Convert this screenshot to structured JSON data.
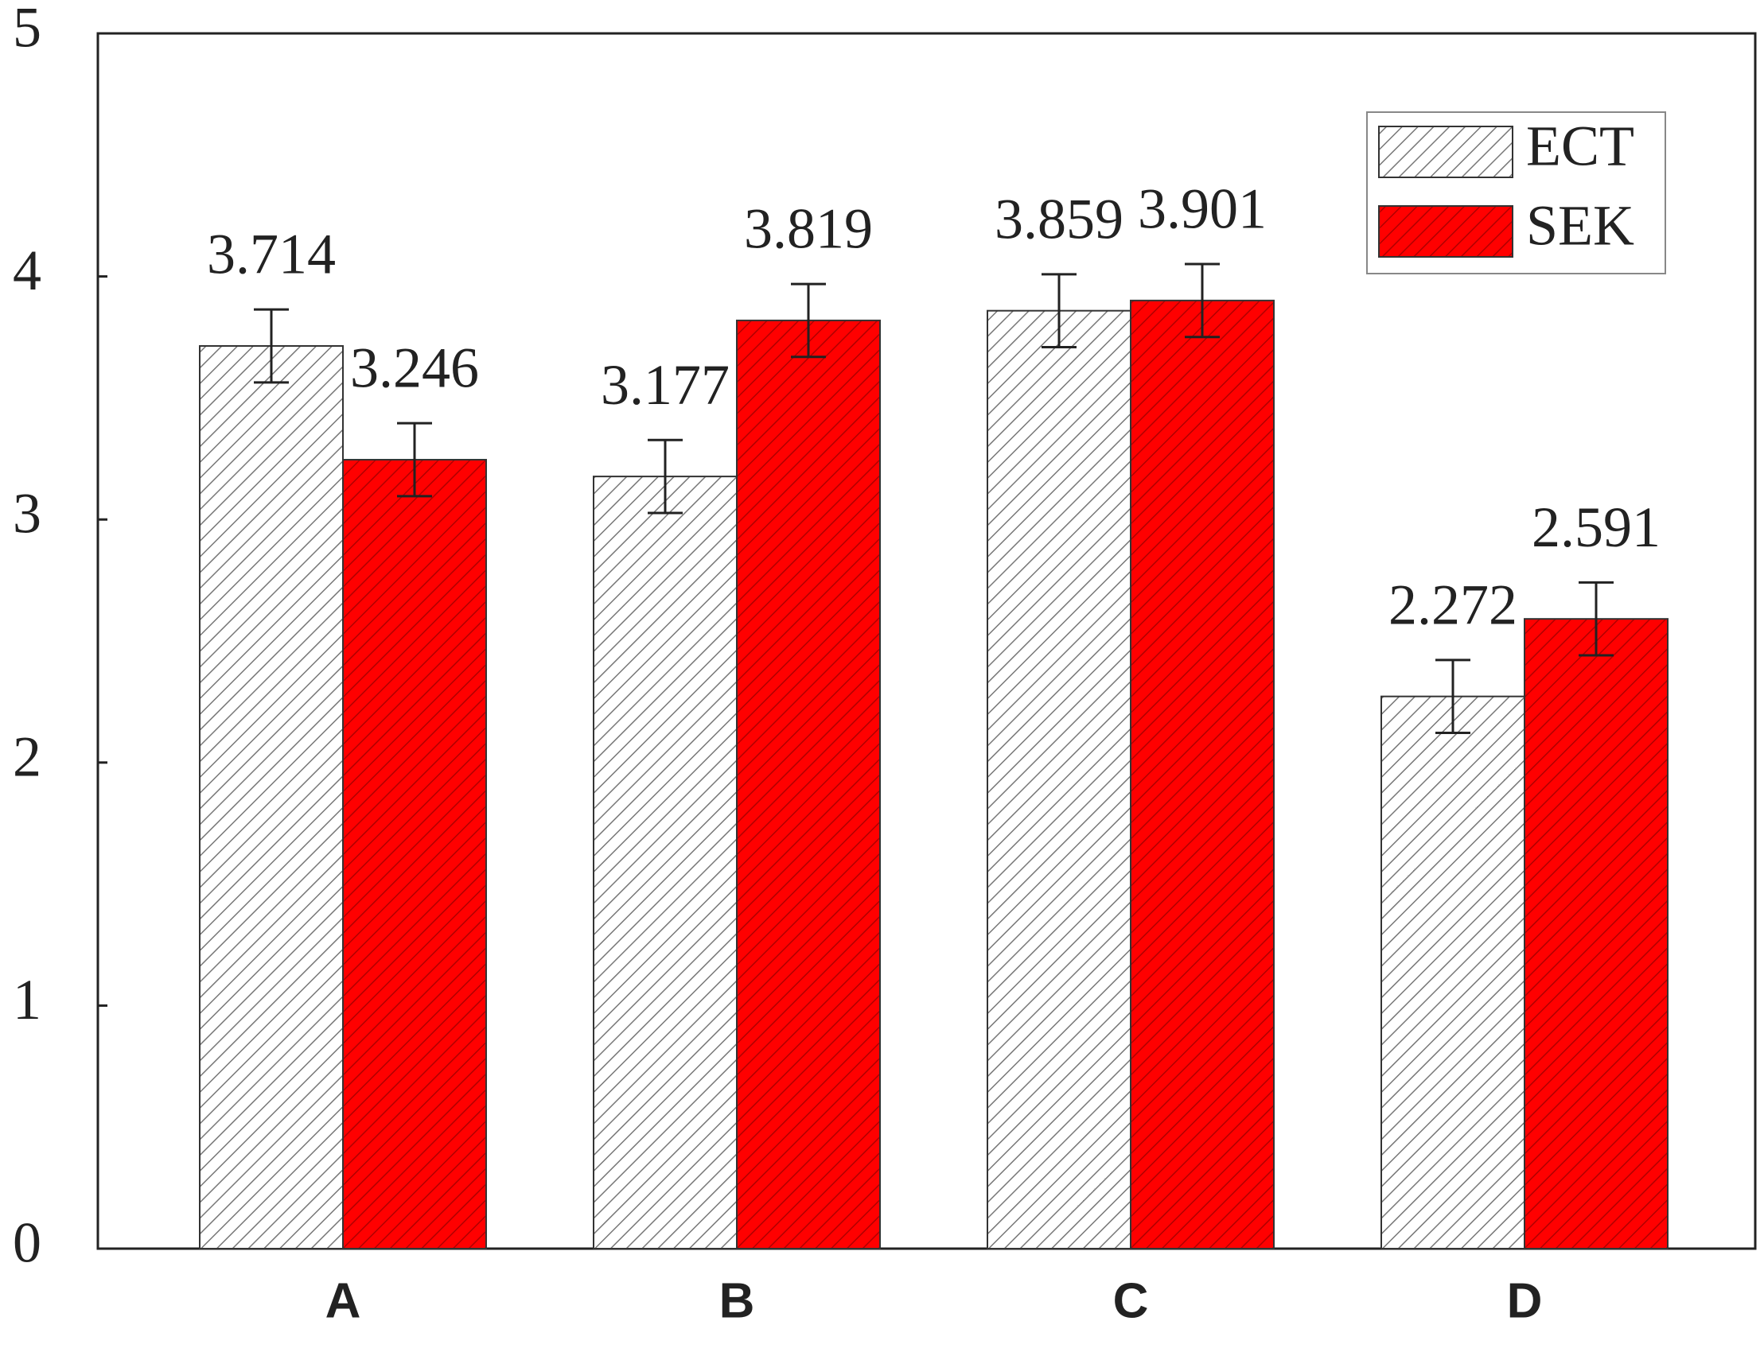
{
  "chart_data": {
    "type": "bar",
    "categories": [
      "A",
      "B",
      "C",
      "D"
    ],
    "series": [
      {
        "name": "ECT",
        "color": "#ffffff",
        "values": [
          3.714,
          3.177,
          3.859,
          2.272
        ],
        "errors": [
          0.15,
          0.15,
          0.15,
          0.15
        ]
      },
      {
        "name": "SEK",
        "color": "#ff0000",
        "values": [
          3.246,
          3.819,
          3.901,
          2.591
        ],
        "errors": [
          0.15,
          0.15,
          0.15,
          0.15
        ]
      }
    ],
    "ylim": [
      0,
      5
    ],
    "yticks": [
      0,
      1,
      2,
      3,
      4,
      5
    ],
    "grid": false,
    "legend": "upper right"
  }
}
